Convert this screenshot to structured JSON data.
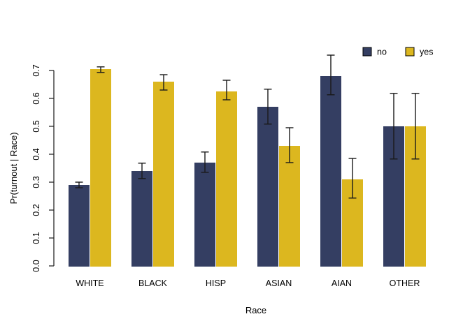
{
  "chart_data": {
    "type": "bar",
    "title": "",
    "xlabel": "Race",
    "ylabel": "Pr(turnout | Race)",
    "categories": [
      "WHITE",
      "BLACK",
      "HISP",
      "ASIAN",
      "AIAN",
      "OTHER"
    ],
    "series": [
      {
        "name": "no",
        "color": "#343E62",
        "values": [
          0.29,
          0.34,
          0.37,
          0.57,
          0.68,
          0.5
        ],
        "error_low": [
          0.28,
          0.313,
          0.335,
          0.508,
          0.613,
          0.383
        ],
        "error_high": [
          0.3,
          0.368,
          0.408,
          0.633,
          0.755,
          0.618
        ]
      },
      {
        "name": "yes",
        "color": "#DCB71F",
        "values": [
          0.705,
          0.66,
          0.625,
          0.43,
          0.31,
          0.5
        ],
        "error_low": [
          0.693,
          0.63,
          0.595,
          0.37,
          0.243,
          0.383
        ],
        "error_high": [
          0.713,
          0.685,
          0.665,
          0.495,
          0.385,
          0.618
        ]
      }
    ],
    "ylim": [
      0,
      0.7
    ],
    "yticks": [
      "0.0",
      "0.1",
      "0.2",
      "0.3",
      "0.4",
      "0.5",
      "0.6",
      "0.7"
    ],
    "grid": false,
    "legend_position": "top-right",
    "legend_labels": [
      "no",
      "yes"
    ],
    "colors": {
      "no": "#343E62",
      "yes": "#DCB71F",
      "error_bar": "#1a1a1a",
      "axis": "#2b2b2b",
      "text": "#000000",
      "background": "#FFFFFF"
    }
  }
}
